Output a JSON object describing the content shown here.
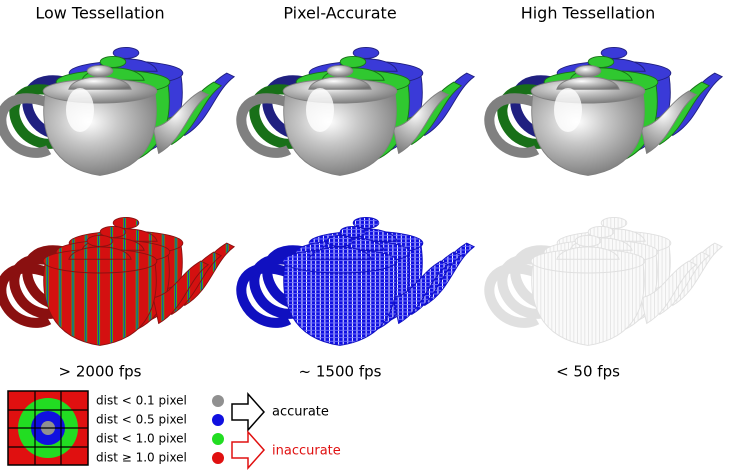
{
  "columns": [
    {
      "title": "Low Tessellation",
      "fps": "> 2000 fps"
    },
    {
      "title": "Pixel-Accurate",
      "fps": "~ 1500 fps"
    },
    {
      "title": "High Tessellation",
      "fps": "< 50 fps"
    }
  ],
  "legend": {
    "rows": [
      "dist < 0.1 pixel",
      "dist < 0.5 pixel",
      "dist < 1.0 pixel",
      "dist ≥ 1.0 pixel"
    ],
    "accurate": "accurate",
    "inaccurate": "inaccurate"
  }
}
